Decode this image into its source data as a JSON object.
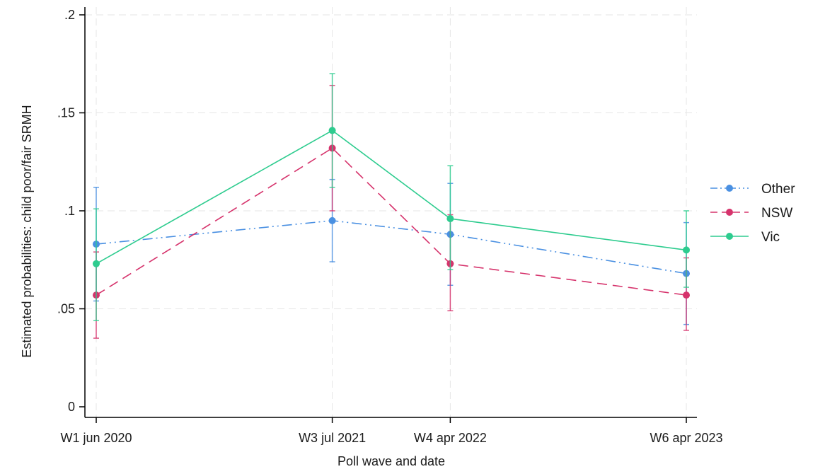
{
  "chart_data": {
    "type": "line",
    "title": "",
    "xlabel": "Poll wave and date",
    "ylabel": "Estimated probabilities: child poor/fair SRMH",
    "ylim": [
      0,
      0.2
    ],
    "yticks": [
      {
        "value": 0,
        "label": "0"
      },
      {
        "value": 0.05,
        "label": ".05"
      },
      {
        "value": 0.1,
        "label": ".1"
      },
      {
        "value": 0.15,
        "label": ".15"
      },
      {
        "value": 0.2,
        "label": ".2"
      }
    ],
    "x_positions": [
      1,
      3,
      4,
      6
    ],
    "categories": [
      "W1 jun 2020",
      "W3 jul 2021",
      "W4 apr 2022",
      "W6 apr 2023"
    ],
    "grid": true,
    "legend_position": "right",
    "series": [
      {
        "name": "Other",
        "color": "#4a90e2",
        "dash": "dash-dot-dot",
        "values": [
          0.083,
          0.095,
          0.088,
          0.068
        ],
        "ci_low": [
          0.054,
          0.074,
          0.062,
          0.042
        ],
        "ci_high": [
          0.112,
          0.116,
          0.114,
          0.094
        ]
      },
      {
        "name": "NSW",
        "color": "#d6336c",
        "dash": "dashed",
        "values": [
          0.057,
          0.132,
          0.073,
          0.057
        ],
        "ci_low": [
          0.035,
          0.1,
          0.049,
          0.039
        ],
        "ci_high": [
          0.079,
          0.164,
          0.098,
          0.076
        ]
      },
      {
        "name": "Vic",
        "color": "#2ecc8f",
        "dash": "solid",
        "values": [
          0.073,
          0.141,
          0.096,
          0.08
        ],
        "ci_low": [
          0.044,
          0.112,
          0.07,
          0.061
        ],
        "ci_high": [
          0.101,
          0.17,
          0.123,
          0.1
        ]
      }
    ]
  }
}
